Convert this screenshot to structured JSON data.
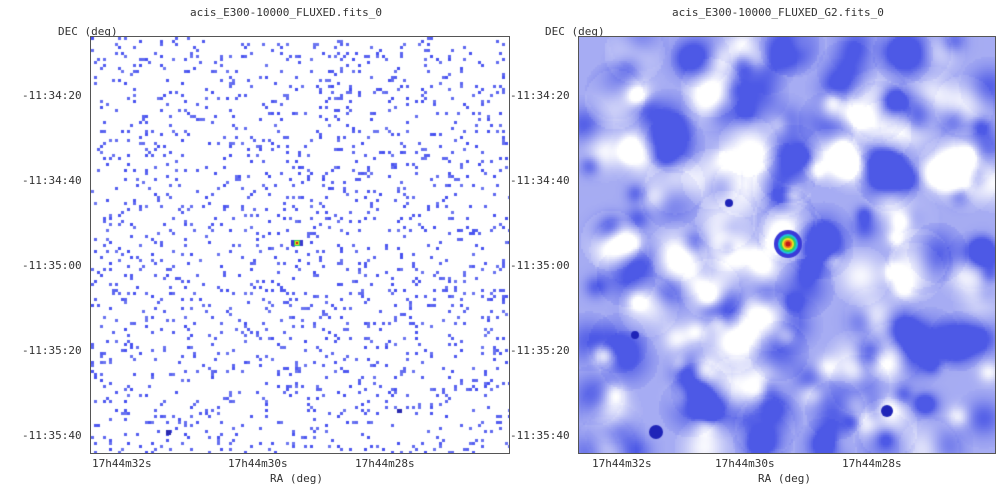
{
  "left": {
    "title": "acis_E300-10000_FLUXED.fits_0",
    "ylabel": "DEC (deg)",
    "xlabel": "RA (deg)",
    "yticks": [
      "-11:34:20",
      "-11:34:40",
      "-11:35:00",
      "-11:35:20",
      "-11:35:40"
    ],
    "xticks": [
      "17h44m32s",
      "17h44m30s",
      "17h44m28s"
    ]
  },
  "right": {
    "title": "acis_E300-10000_FLUXED_G2.fits_0",
    "ylabel": "DEC (deg)",
    "xlabel": "RA (deg)",
    "yticks": [
      "-11:34:20",
      "-11:34:40",
      "-11:35:00",
      "-11:35:20",
      "-11:35:40"
    ],
    "xticks": [
      "17h44m32s",
      "17h44m30s",
      "17h44m28s"
    ]
  },
  "colors": {
    "background": "#ffffff",
    "pixel_blue": "#4a4ff0",
    "smooth_dark": "#4d59e6",
    "smooth_light": "#ffffff",
    "source_center": "#d21a1a"
  }
}
